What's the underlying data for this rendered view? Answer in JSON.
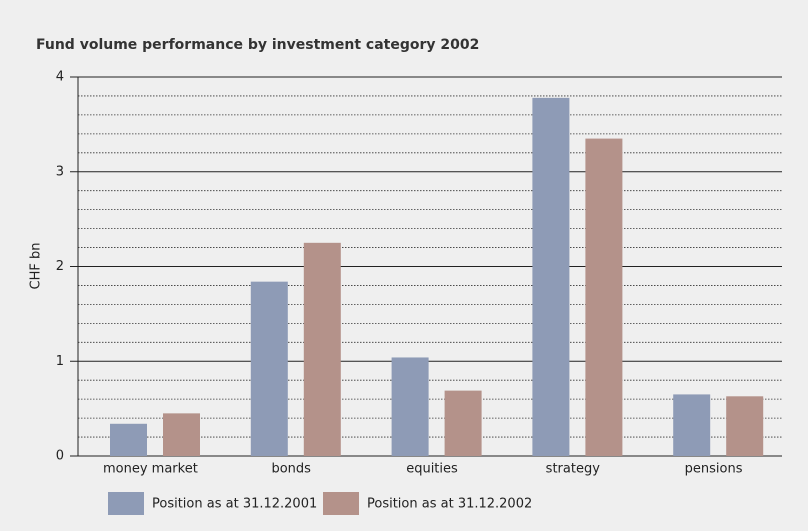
{
  "chart_data": {
    "type": "bar",
    "title": "Fund volume performance by investment category 2002",
    "y_label": "CHF bn",
    "categories": [
      "money market",
      "bonds",
      "equities",
      "strategy",
      "pensions"
    ],
    "series": [
      {
        "name": "Position as at 31.12.2001",
        "color": "#8e9bb6",
        "values": [
          0.34,
          1.84,
          1.04,
          3.78,
          0.65
        ]
      },
      {
        "name": "Position as at 31.12.2002",
        "color": "#b4928a",
        "values": [
          0.45,
          2.25,
          0.69,
          3.35,
          0.63
        ]
      }
    ],
    "ylim": [
      0,
      4
    ],
    "yticks": [
      0,
      1,
      2,
      3,
      4
    ],
    "minor_yticks": [
      0.2,
      0.4,
      0.6,
      0.8,
      1.2,
      1.4,
      1.6,
      1.8,
      2.2,
      2.4,
      2.6,
      2.8,
      3.2,
      3.4,
      3.6,
      3.8
    ],
    "grid": true
  }
}
